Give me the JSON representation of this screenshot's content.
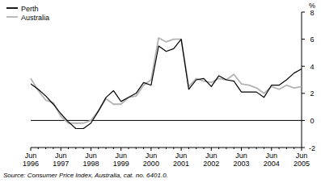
{
  "chart_data": {
    "type": "line",
    "y_label": "%",
    "annotations": [
      "Source: Consumer Price Index, Australia, cat. no. 6401.0."
    ],
    "categories": [
      "Jun 1996",
      null,
      null,
      null,
      "Jun 1997",
      null,
      null,
      null,
      "Jun 1998",
      null,
      null,
      null,
      "Jun 1999",
      null,
      null,
      null,
      "Jun 2000",
      null,
      null,
      null,
      "Jun 2001",
      null,
      null,
      null,
      "Jun 2002",
      null,
      null,
      null,
      "Jun 2003",
      null,
      null,
      null,
      "Jun 2004",
      null,
      null,
      null,
      "Jun 2005"
    ],
    "series": [
      {
        "name": "Perth",
        "color": "#000000",
        "values": [
          2.7,
          2.3,
          1.8,
          1.2,
          0.5,
          -0.1,
          -0.6,
          -0.6,
          -0.2,
          0.7,
          1.7,
          2.2,
          1.4,
          1.7,
          2.0,
          2.8,
          2.6,
          5.5,
          5.1,
          5.3,
          6.0,
          2.3,
          3.0,
          3.1,
          2.5,
          3.3,
          3.0,
          2.9,
          2.1,
          2.1,
          2.1,
          1.7,
          2.6,
          2.6,
          3.0,
          3.5,
          3.8
        ]
      },
      {
        "name": "Australia",
        "color": "#b3b3b3",
        "values": [
          3.1,
          2.2,
          1.5,
          1.3,
          0.3,
          -0.2,
          -0.2,
          -0.2,
          0.0,
          0.7,
          1.6,
          1.2,
          1.2,
          1.7,
          1.8,
          2.6,
          3.0,
          6.1,
          5.8,
          6.0,
          6.0,
          2.5,
          3.1,
          2.9,
          2.8,
          3.1,
          3.0,
          3.4,
          2.7,
          2.6,
          2.4,
          2.0,
          2.5,
          2.3,
          2.6,
          2.4,
          2.5
        ]
      }
    ],
    "ylim": [
      -2,
      8
    ],
    "yticks": [
      -2,
      0,
      2,
      4,
      6,
      8
    ],
    "legend": "upper-left",
    "grid": false
  }
}
